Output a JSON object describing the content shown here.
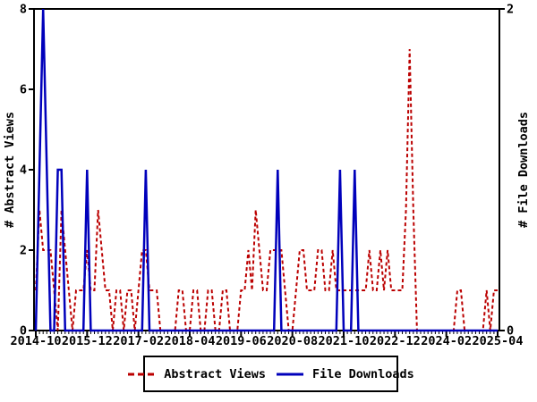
{
  "chart_data": {
    "type": "line",
    "title": "",
    "x_start": "2014-10",
    "x_end": "2025-04",
    "x_tick_interval_months": 14,
    "x_tick_labels": [
      "2014-10",
      "2015-12",
      "2017-02",
      "2018-04",
      "2019-06",
      "2020-08",
      "2021-10",
      "2022-12",
      "2024-02",
      "2025-04"
    ],
    "left_axis": {
      "label": "# Abstract Views",
      "ticks": [
        0,
        2,
        4,
        6,
        8
      ],
      "tick_labels": [
        "0",
        "2",
        "4",
        "6",
        "8"
      ],
      "range": [
        0,
        8
      ]
    },
    "right_axis": {
      "label": "# File Downloads",
      "ticks": [
        0,
        2
      ],
      "tick_labels": [
        "0",
        "2"
      ],
      "range": [
        0,
        2
      ]
    },
    "grid": false,
    "legend_position": "bottom-center",
    "series": [
      {
        "name": "Abstract Views",
        "axis": "left",
        "color": "#bb0000",
        "style": "dashed",
        "values": [
          1,
          3,
          2,
          2,
          2,
          1,
          0,
          3,
          2,
          1,
          0,
          1,
          1,
          1,
          2,
          1,
          1,
          3,
          2,
          1,
          1,
          0,
          1,
          1,
          0,
          1,
          1,
          0,
          1,
          2,
          2,
          1,
          1,
          1,
          0,
          0,
          0,
          0,
          0,
          1,
          1,
          0,
          0,
          1,
          1,
          0,
          0,
          1,
          1,
          0,
          0,
          1,
          1,
          0,
          0,
          0,
          1,
          1,
          2,
          1,
          3,
          2,
          1,
          1,
          2,
          2,
          2,
          2,
          1,
          0,
          0,
          1,
          2,
          2,
          1,
          1,
          1,
          2,
          2,
          1,
          1,
          2,
          1,
          1,
          1,
          1,
          1,
          1,
          1,
          1,
          1,
          2,
          1,
          1,
          2,
          1,
          2,
          1,
          1,
          1,
          1,
          3,
          7,
          3,
          0,
          0,
          0,
          0,
          0,
          0,
          0,
          0,
          0,
          0,
          0,
          1,
          1,
          0,
          0,
          0,
          0,
          0,
          0,
          1,
          0,
          1,
          1
        ]
      },
      {
        "name": "File Downloads",
        "axis": "right",
        "color": "#0000bb",
        "style": "solid",
        "values": [
          0,
          1,
          2,
          1,
          0,
          0,
          1,
          1,
          0,
          0,
          0,
          0,
          0,
          0,
          1,
          0,
          0,
          0,
          0,
          0,
          0,
          0,
          0,
          0,
          0,
          0,
          0,
          0,
          0,
          0,
          1,
          0,
          0,
          0,
          0,
          0,
          0,
          0,
          0,
          0,
          0,
          0,
          0,
          0,
          0,
          0,
          0,
          0,
          0,
          0,
          0,
          0,
          0,
          0,
          0,
          0,
          0,
          0,
          0,
          0,
          0,
          0,
          0,
          0,
          0,
          0,
          1,
          0,
          0,
          0,
          0,
          0,
          0,
          0,
          0,
          0,
          0,
          0,
          0,
          0,
          0,
          0,
          0,
          1,
          0,
          0,
          0,
          1,
          0,
          0,
          0,
          0,
          0,
          0,
          0,
          0,
          0,
          0,
          0,
          0,
          0,
          0,
          0,
          0,
          0,
          0,
          0,
          0,
          0,
          0,
          0,
          0,
          0,
          0,
          0,
          0,
          0,
          0,
          0,
          0,
          0,
          0,
          0,
          0,
          0,
          0,
          0
        ]
      }
    ],
    "legend": {
      "items": [
        {
          "label": "Abstract Views",
          "color": "#bb0000",
          "style": "dashed"
        },
        {
          "label": "File Downloads",
          "color": "#0000bb",
          "style": "solid"
        }
      ]
    },
    "frame_color": "#000000",
    "background_color": "#ffffff"
  }
}
